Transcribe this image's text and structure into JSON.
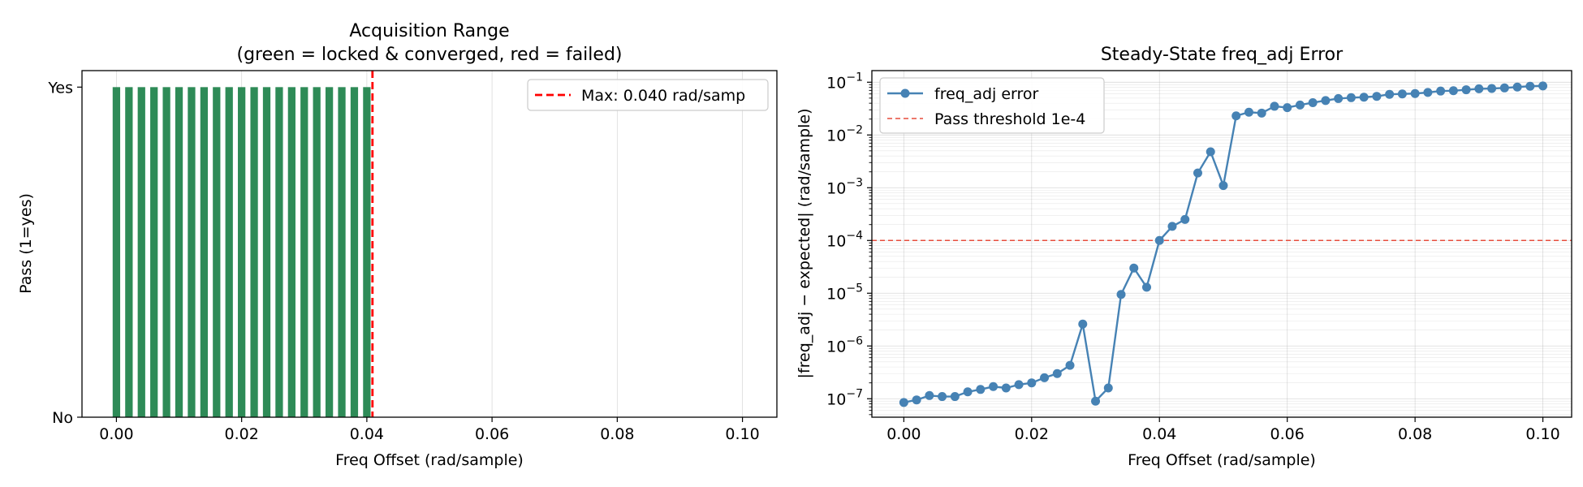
{
  "chart_data": [
    {
      "type": "bar",
      "title_lines": [
        "Acquisition Range",
        "(green = locked & converged, red = failed)"
      ],
      "xlabel": "Freq Offset (rad/sample)",
      "ylabel": "Pass (1=yes)",
      "xlim": [
        -0.0055,
        0.1055
      ],
      "ylim": [
        0,
        1.05
      ],
      "xticks": [
        0.0,
        0.02,
        0.04,
        0.06,
        0.08,
        0.1
      ],
      "xtick_labels": [
        "0.00",
        "0.02",
        "0.04",
        "0.06",
        "0.08",
        "0.10"
      ],
      "yticks": [
        0,
        1
      ],
      "ytick_labels": [
        "No",
        "Yes"
      ],
      "grid": true,
      "legend_position": "top-right",
      "bar_width": 0.0012,
      "pass_color": "#2e8b57",
      "fail_color": "#d62728",
      "x": [
        0.0,
        0.002,
        0.004,
        0.006,
        0.008,
        0.01,
        0.012,
        0.014,
        0.016,
        0.018,
        0.02,
        0.022,
        0.024,
        0.026,
        0.028,
        0.03,
        0.032,
        0.034,
        0.036,
        0.038,
        0.04
      ],
      "values": [
        1,
        1,
        1,
        1,
        1,
        1,
        1,
        1,
        1,
        1,
        1,
        1,
        1,
        1,
        1,
        1,
        1,
        1,
        1,
        1,
        1
      ],
      "max_line": {
        "x": 0.0409,
        "label": "Max: 0.040 rad/samp",
        "color": "#ff0000"
      }
    },
    {
      "type": "line",
      "scale_y": "log",
      "title": "Steady-State freq_adj Error",
      "xlabel": "Freq Offset (rad/sample)",
      "ylabel": "|freq_adj − expected| (rad/sample)",
      "xlim": [
        -0.005,
        0.1045
      ],
      "ylim_log10": [
        -7.35,
        -0.78
      ],
      "xticks": [
        0.0,
        0.02,
        0.04,
        0.06,
        0.08,
        0.1
      ],
      "xtick_labels": [
        "0.00",
        "0.02",
        "0.04",
        "0.06",
        "0.08",
        "0.10"
      ],
      "yticks_exp": [
        -7,
        -6,
        -5,
        -4,
        -3,
        -2,
        -1
      ],
      "grid": true,
      "legend_position": "top-left",
      "series": [
        {
          "name": "freq_adj error",
          "color": "#4682b4",
          "x": [
            0.0,
            0.002,
            0.004,
            0.006,
            0.008,
            0.01,
            0.012,
            0.014,
            0.016,
            0.018,
            0.02,
            0.022,
            0.024,
            0.026,
            0.028,
            0.03,
            0.032,
            0.034,
            0.036,
            0.038,
            0.04,
            0.042,
            0.044,
            0.046,
            0.048,
            0.05,
            0.052,
            0.054,
            0.056,
            0.058,
            0.06,
            0.062,
            0.064,
            0.066,
            0.068,
            0.07,
            0.072,
            0.074,
            0.076,
            0.078,
            0.08,
            0.082,
            0.084,
            0.086,
            0.088,
            0.09,
            0.092,
            0.094,
            0.096,
            0.098,
            0.1
          ],
          "values": [
            8.5e-08,
            9.5e-08,
            1.15e-07,
            1.1e-07,
            1.1e-07,
            1.35e-07,
            1.5e-07,
            1.7e-07,
            1.6e-07,
            1.85e-07,
            2e-07,
            2.5e-07,
            3e-07,
            4.3e-07,
            2.6e-06,
            9e-08,
            1.6e-07,
            9.5e-06,
            3e-05,
            1.3e-05,
            0.0001,
            0.000185,
            0.00025,
            0.0019,
            0.0048,
            0.0011,
            0.023,
            0.027,
            0.026,
            0.035,
            0.033,
            0.037,
            0.041,
            0.045,
            0.049,
            0.051,
            0.052,
            0.054,
            0.059,
            0.06,
            0.061,
            0.064,
            0.068,
            0.069,
            0.072,
            0.075,
            0.076,
            0.078,
            0.081,
            0.084,
            0.085
          ]
        }
      ],
      "threshold": {
        "value": 0.0001,
        "label": "Pass threshold 1e-4",
        "color": "#e74c3c"
      }
    }
  ]
}
